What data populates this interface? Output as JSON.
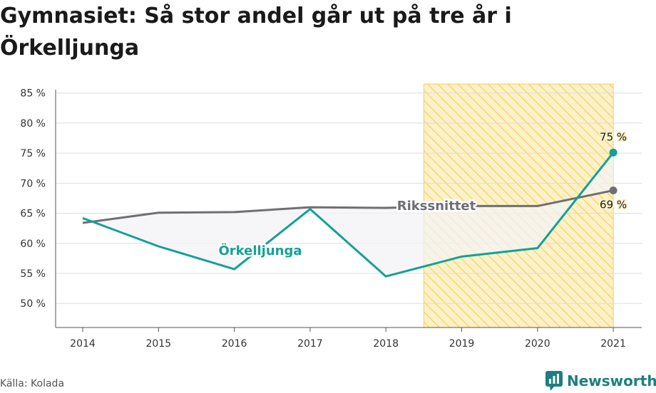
{
  "title": "Gymnasiet: Så stor andel går ut på tre år i Örkelljunga",
  "source": "Källa: Kolada",
  "brand": {
    "name": "Newsworthy"
  },
  "colors": {
    "local": "#14a196",
    "national": "#6f6f73",
    "highlight_fill": "#fdf1c8",
    "highlight_hatch": "#f5cd5a",
    "grid": "#dddddd",
    "area": "#f3f3f5",
    "brand": "#1d7f82"
  },
  "chart_data": {
    "type": "line",
    "title": "Gymnasiet: Så stor andel går ut på tre år i Örkelljunga",
    "xlabel": "",
    "ylabel": "",
    "categories": [
      "2014",
      "2015",
      "2016",
      "2017",
      "2018",
      "2019",
      "2020",
      "2021"
    ],
    "ylim": [
      46,
      86.5
    ],
    "y_ticks": [
      {
        "value": 50,
        "label": "50 %"
      },
      {
        "value": 55,
        "label": "55 %"
      },
      {
        "value": 60,
        "label": "60 %"
      },
      {
        "value": 65,
        "label": "65 %"
      },
      {
        "value": 70,
        "label": "70 %"
      },
      {
        "value": 75,
        "label": "75 %"
      },
      {
        "value": 80,
        "label": "80 %"
      },
      {
        "value": 85,
        "label": "85 %"
      }
    ],
    "grid": true,
    "highlight_range": [
      "2019",
      "2021"
    ],
    "series": [
      {
        "name": "Örkelljunga",
        "values": [
          64.2,
          59.5,
          55.7,
          65.7,
          54.5,
          57.8,
          59.2,
          75.1
        ],
        "end_label": "75 %"
      },
      {
        "name": "Rikssnittet",
        "values": [
          63.4,
          65.1,
          65.2,
          66.0,
          65.9,
          66.2,
          66.2,
          68.8
        ],
        "end_label": "69 %"
      }
    ]
  }
}
